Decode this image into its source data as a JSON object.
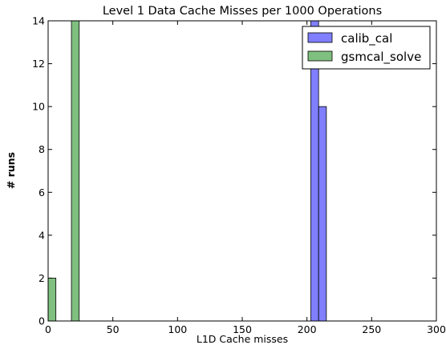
{
  "chart_data": {
    "type": "bar",
    "title": "Level 1 Data Cache Misses per 1000 Operations",
    "xlabel": "L1D Cache misses",
    "ylabel": "# runs",
    "xlim": [
      0,
      300
    ],
    "ylim": [
      0,
      14
    ],
    "xticks": [
      "0",
      "50",
      "100",
      "150",
      "200",
      "250",
      "300"
    ],
    "yticks": [
      "0",
      "2",
      "4",
      "6",
      "8",
      "10",
      "12",
      "14"
    ],
    "grid": false,
    "legend_position": "top-right",
    "series": [
      {
        "name": "calib_cal",
        "color": "#7f7fff",
        "bins": [
          {
            "x0": 203,
            "x1": 209,
            "count": 14
          },
          {
            "x0": 209,
            "x1": 215,
            "count": 10
          }
        ]
      },
      {
        "name": "gsmcal_solve",
        "color": "#7fbf7f",
        "bins": [
          {
            "x0": 0,
            "x1": 6,
            "count": 2
          },
          {
            "x0": 18,
            "x1": 24,
            "count": 14
          }
        ]
      }
    ]
  }
}
